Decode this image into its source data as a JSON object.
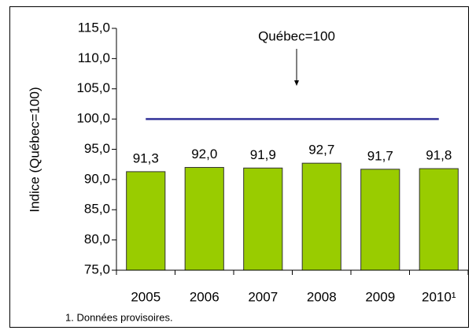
{
  "chart_data": {
    "type": "bar",
    "ylabel": "Indice (Québec=100)",
    "annotation": "Québec=100",
    "footnote": "1. Données provisoires.",
    "categories": [
      "2005",
      "2006",
      "2007",
      "2008",
      "2009",
      "2010¹"
    ],
    "series": [
      {
        "type": "bar",
        "color": "#99cc00",
        "values": [
          91.3,
          92.0,
          91.9,
          92.7,
          91.7,
          91.8
        ],
        "value_labels": [
          "91,3",
          "92,0",
          "91,9",
          "92,7",
          "91,7",
          "91,8"
        ]
      },
      {
        "type": "line",
        "color": "#333399",
        "values": [
          100,
          100,
          100,
          100,
          100,
          100
        ]
      }
    ],
    "ylim": [
      75,
      115
    ],
    "yticks": [
      {
        "value": 75,
        "label": "75,0"
      },
      {
        "value": 80,
        "label": "80,0"
      },
      {
        "value": 85,
        "label": "85,0"
      },
      {
        "value": 90,
        "label": "90,0"
      },
      {
        "value": 95,
        "label": "95,0"
      },
      {
        "value": 100,
        "label": "100,0"
      },
      {
        "value": 105,
        "label": "105,0"
      },
      {
        "value": 110,
        "label": "110,0"
      },
      {
        "value": 115,
        "label": "115,0"
      }
    ]
  }
}
